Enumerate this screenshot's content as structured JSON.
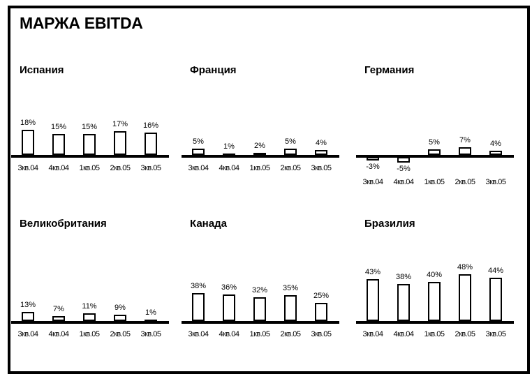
{
  "page": {
    "title": "МАРЖА EBITDA"
  },
  "colors": {
    "ink": "#000000",
    "paper": "#ffffff",
    "bar_fill": "#ffffff",
    "bar_border": "#000000"
  },
  "chart_data": [
    {
      "type": "bar",
      "title": "Испания",
      "categories": [
        "3кв.04",
        "4кв.04",
        "1кв.05",
        "2кв.05",
        "3кв.05"
      ],
      "values": [
        18,
        15,
        15,
        17,
        16
      ],
      "unit": "%",
      "ylim": [
        0,
        20
      ],
      "grid": false,
      "legend": false
    },
    {
      "type": "bar",
      "title": "Франция",
      "categories": [
        "3кв.04",
        "4кв.04",
        "1кв.05",
        "2кв.05",
        "3кв.05"
      ],
      "values": [
        5,
        1,
        2,
        5,
        4
      ],
      "unit": "%",
      "ylim": [
        0,
        10
      ],
      "grid": false,
      "legend": false
    },
    {
      "type": "bar",
      "title": "Германия",
      "categories": [
        "3кв.04",
        "4кв.04",
        "1кв.05",
        "2кв.05",
        "3кв.05"
      ],
      "values": [
        -3,
        -5,
        5,
        7,
        4
      ],
      "unit": "%",
      "ylim": [
        -10,
        10
      ],
      "grid": false,
      "legend": false
    },
    {
      "type": "bar",
      "title": "Великобритания",
      "categories": [
        "3кв.04",
        "4кв.04",
        "1кв.05",
        "2кв.05",
        "3кв.05"
      ],
      "values": [
        13,
        7,
        11,
        9,
        1
      ],
      "unit": "%",
      "ylim": [
        0,
        20
      ],
      "grid": false,
      "legend": false
    },
    {
      "type": "bar",
      "title": "Канада",
      "categories": [
        "3кв.04",
        "4кв.04",
        "1кв.05",
        "2кв.05",
        "3кв.05"
      ],
      "values": [
        38,
        36,
        32,
        35,
        25
      ],
      "unit": "%",
      "ylim": [
        0,
        50
      ],
      "grid": false,
      "legend": false
    },
    {
      "type": "bar",
      "title": "Бразилия",
      "categories": [
        "3кв.04",
        "4кв.04",
        "1кв.05",
        "2кв.05",
        "3кв.05"
      ],
      "values": [
        43,
        38,
        40,
        48,
        44
      ],
      "unit": "%",
      "ylim": [
        0,
        50
      ],
      "grid": false,
      "legend": false
    }
  ]
}
